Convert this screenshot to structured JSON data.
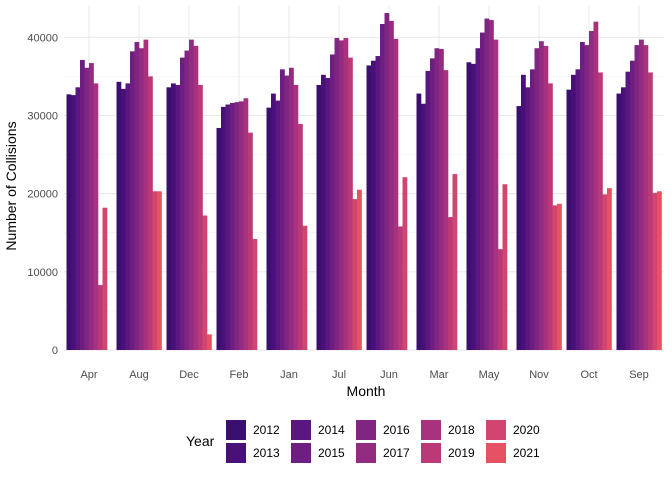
{
  "chart_data": {
    "type": "bar",
    "xlabel": "Month",
    "ylabel": "Number of Collisions",
    "ylim": [
      0,
      44000
    ],
    "yticks": [
      0,
      10000,
      20000,
      30000,
      40000
    ],
    "grid": true,
    "legend": {
      "title": "Year",
      "placement": "bottom",
      "columns": 5
    },
    "categories": [
      "Apr",
      "Aug",
      "Dec",
      "Feb",
      "Jan",
      "Jul",
      "Jun",
      "Mar",
      "May",
      "Nov",
      "Oct",
      "Sep"
    ],
    "series": [
      {
        "name": "2012",
        "color": "#3b0f70",
        "values": [
          32700,
          34300,
          33600,
          28400,
          31000,
          33900,
          36400,
          32800,
          36800,
          31200,
          33300,
          32800
        ]
      },
      {
        "name": "2013",
        "color": "#4a1079",
        "values": [
          32600,
          33400,
          34100,
          31100,
          32800,
          35200,
          37000,
          31500,
          36600,
          35200,
          35200,
          33600
        ]
      },
      {
        "name": "2014",
        "color": "#5c167f",
        "values": [
          33600,
          34100,
          33900,
          31400,
          31900,
          34800,
          37600,
          35700,
          38600,
          33600,
          35900,
          35600
        ]
      },
      {
        "name": "2015",
        "color": "#6e1e81",
        "values": [
          37100,
          38200,
          37400,
          31600,
          35900,
          37800,
          41700,
          37300,
          40600,
          35900,
          39400,
          37000
        ]
      },
      {
        "name": "2016",
        "color": "#802582",
        "values": [
          36100,
          39400,
          38300,
          31700,
          35100,
          39900,
          43100,
          38600,
          42400,
          38600,
          39000,
          39000
        ]
      },
      {
        "name": "2017",
        "color": "#932b80",
        "values": [
          36700,
          38600,
          39700,
          31800,
          36100,
          39600,
          42100,
          38500,
          42200,
          39500,
          40800,
          39700
        ]
      },
      {
        "name": "2018",
        "color": "#a8327d",
        "values": [
          34100,
          39700,
          38900,
          32200,
          33900,
          39900,
          39800,
          35800,
          39700,
          38900,
          42000,
          39000
        ]
      },
      {
        "name": "2019",
        "color": "#bc3978",
        "values": [
          8300,
          35000,
          33900,
          27800,
          28900,
          37400,
          15800,
          17000,
          12900,
          34100,
          35500,
          35500
        ]
      },
      {
        "name": "2020",
        "color": "#d14670",
        "values": [
          18200,
          20300,
          17200,
          14200,
          15900,
          19300,
          22100,
          22500,
          21200,
          18500,
          19900,
          20100
        ]
      },
      {
        "name": "2021",
        "color": "#e65163",
        "values": [
          null,
          20300,
          2000,
          null,
          null,
          20500,
          null,
          null,
          null,
          18700,
          20700,
          20300
        ]
      }
    ]
  }
}
